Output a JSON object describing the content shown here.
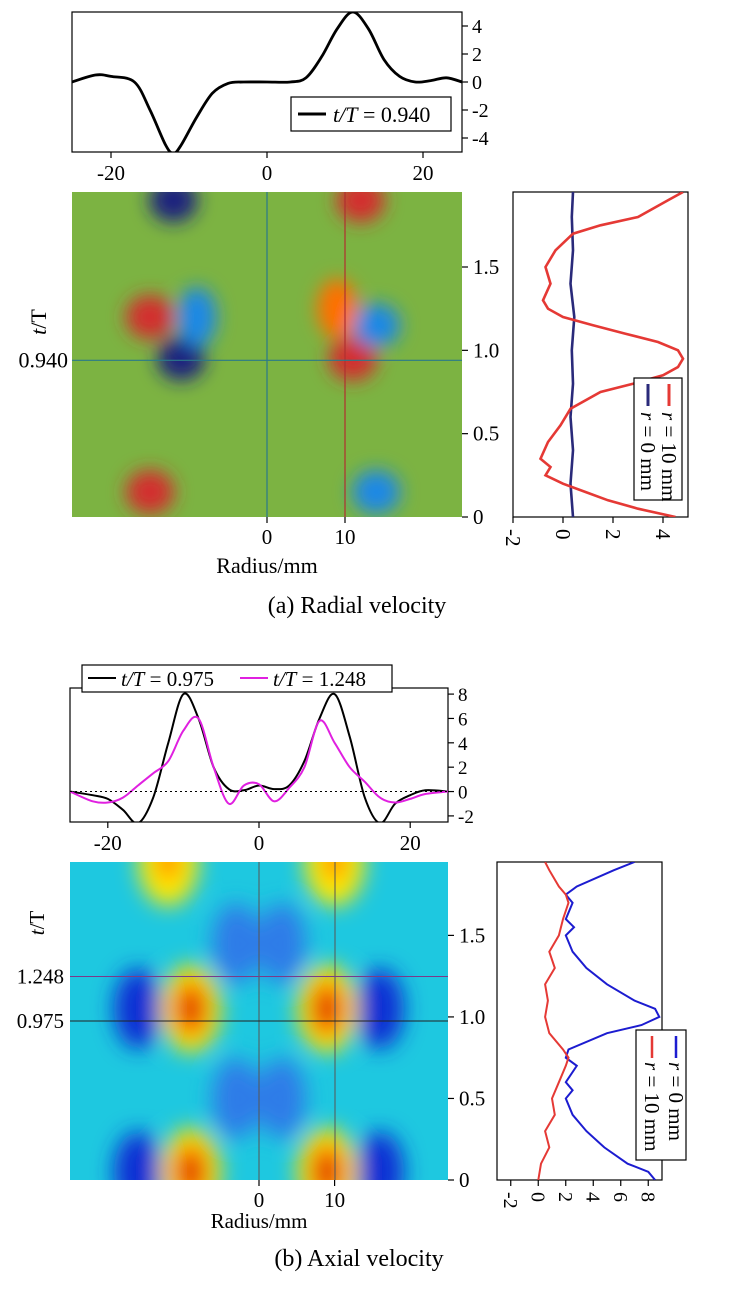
{
  "chart_data": [
    {
      "panel": "a",
      "caption": "(a) Radial velocity",
      "plots": [
        {
          "name": "profile",
          "type": "line",
          "xlim": [
            -25,
            25
          ],
          "ylim": [
            -5,
            5
          ],
          "xticks": [
            "-20",
            "0",
            "20"
          ],
          "yticks": [
            "4",
            "2",
            "0",
            "-2",
            "-4"
          ],
          "legend": [
            {
              "label_italic": "t/T",
              "label_rest": " = 0.940",
              "color": "#000000"
            }
          ],
          "series": [
            {
              "name": "t/T = 0.940",
              "color": "#000000",
              "x": [
                -25,
                -22,
                -20,
                -17,
                -15,
                -13,
                -12,
                -11,
                -9,
                -7,
                -5,
                -3,
                0,
                3,
                5,
                7,
                9,
                11,
                13,
                15,
                17,
                19,
                21,
                23,
                25
              ],
              "y": [
                0,
                0.5,
                0.4,
                0,
                -2,
                -4.5,
                -5.1,
                -4.5,
                -2.5,
                -0.8,
                -0.1,
                0,
                0,
                0,
                0.3,
                1.8,
                3.8,
                5,
                3.8,
                1.6,
                0.4,
                0,
                0.1,
                0.3,
                0
              ]
            }
          ]
        },
        {
          "name": "contour",
          "type": "heatmap",
          "xlabel": "Radius/mm",
          "ylabel_italic": "t",
          "ylabel_rest": "/T",
          "xlim": [
            -25,
            25
          ],
          "ylim": [
            0,
            1.95
          ],
          "xticks": [
            "0",
            "10"
          ],
          "yticks": [
            "0",
            "0.5",
            "1.0",
            "1.5"
          ],
          "marker_label": "0.940",
          "marker_value": 0.94,
          "background": "#7cb342",
          "blobs": [
            {
              "x": -11,
              "y": 0.95,
              "v": -4.5
            },
            {
              "x": -12,
              "y": 1.9,
              "v": -4.5
            },
            {
              "x": -15,
              "y": 1.2,
              "v": 4.0
            },
            {
              "x": -15,
              "y": 0.15,
              "v": 4.0
            },
            {
              "x": 11,
              "y": 0.95,
              "v": 4.5
            },
            {
              "x": 12,
              "y": 1.9,
              "v": 4.5
            },
            {
              "x": 14,
              "y": 1.15,
              "v": -3.0
            },
            {
              "x": 14,
              "y": 0.15,
              "v": -3.0
            },
            {
              "x": -9,
              "y": 1.2,
              "v": -1.5
            },
            {
              "x": 9,
              "y": 1.25,
              "v": 1.5
            }
          ]
        },
        {
          "name": "time-trace",
          "type": "line",
          "xlim": [
            -2,
            5
          ],
          "ylim": [
            0,
            1.95
          ],
          "xticks": [
            "-2",
            "0",
            "2",
            "4"
          ],
          "yticks": [
            "0",
            "0.5",
            "1.0",
            "1.5"
          ],
          "legend": [
            {
              "label_italic": "r",
              "label_rest": " = 0 mm",
              "color": "#2a2a7a"
            },
            {
              "label_italic": "r",
              "label_rest": " = 10 mm",
              "color": "#e53935"
            }
          ],
          "series": [
            {
              "name": "r = 0 mm",
              "color": "#2a2a7a",
              "t": [
                0,
                0.2,
                0.4,
                0.6,
                0.8,
                1.0,
                1.2,
                1.4,
                1.6,
                1.8,
                1.95
              ],
              "v": [
                0.4,
                0.3,
                0.4,
                0.3,
                0.4,
                0.35,
                0.45,
                0.3,
                0.4,
                0.35,
                0.4
              ]
            },
            {
              "name": "r = 10 mm",
              "color": "#e53935",
              "t": [
                0,
                0.05,
                0.1,
                0.15,
                0.2,
                0.25,
                0.3,
                0.35,
                0.45,
                0.55,
                0.65,
                0.75,
                0.8,
                0.85,
                0.9,
                0.95,
                1.0,
                1.05,
                1.1,
                1.15,
                1.2,
                1.25,
                1.3,
                1.4,
                1.5,
                1.6,
                1.7,
                1.75,
                1.8,
                1.9,
                1.95
              ],
              "v": [
                4.5,
                3.0,
                1.8,
                0.9,
                0.0,
                -0.7,
                -0.5,
                -0.9,
                -0.6,
                -0.1,
                0.3,
                1.5,
                2.8,
                4.0,
                4.6,
                4.8,
                4.6,
                3.8,
                2.5,
                1.2,
                0.0,
                -0.6,
                -0.8,
                -0.5,
                -0.7,
                -0.3,
                0.4,
                1.5,
                3.0,
                4.2,
                4.8
              ]
            }
          ]
        }
      ]
    },
    {
      "panel": "b",
      "caption": "(b) Axial velocity",
      "plots": [
        {
          "name": "profile",
          "type": "line",
          "xlim": [
            -25,
            25
          ],
          "ylim": [
            -2.5,
            8.5
          ],
          "xticks": [
            "-20",
            "0",
            "20"
          ],
          "yticks": [
            "8",
            "6",
            "4",
            "2",
            "0",
            "-2"
          ],
          "legend": [
            {
              "label_italic": "t/T",
              "label_rest": " = 0.975",
              "color": "#000000"
            },
            {
              "label_italic": "t/T",
              "label_rest": " = 1.248",
              "color": "#e020e0"
            }
          ],
          "series": [
            {
              "name": "t/T = 0.975",
              "color": "#000000",
              "x": [
                -25,
                -22,
                -20,
                -18,
                -16,
                -14,
                -12,
                -10,
                -8,
                -6,
                -4,
                -2,
                0,
                2,
                4,
                6,
                8,
                10,
                12,
                14,
                16,
                18,
                20,
                22,
                25
              ],
              "y": [
                0,
                -0.3,
                -0.6,
                -1.5,
                -2.6,
                -0.5,
                4.0,
                8.0,
                6.0,
                2.0,
                0.2,
                0.1,
                0.5,
                0.2,
                0.5,
                2.5,
                6.0,
                8.0,
                4.5,
                -0.5,
                -2.6,
                -1.0,
                -0.3,
                0.1,
                0
              ]
            },
            {
              "name": "t/T = 1.248",
              "color": "#e020e0",
              "x": [
                -25,
                -22,
                -20,
                -18,
                -16,
                -14,
                -12,
                -10,
                -8,
                -6,
                -4,
                -2,
                0,
                2,
                4,
                6,
                8,
                10,
                12,
                14,
                16,
                18,
                20,
                22,
                25
              ],
              "y": [
                0,
                -0.8,
                -0.9,
                -0.5,
                0.5,
                1.5,
                2.5,
                5.0,
                6.0,
                2.0,
                -1.0,
                0.5,
                0.6,
                -0.8,
                0.3,
                2.0,
                5.8,
                4.0,
                2.0,
                0.8,
                -0.5,
                -0.9,
                -0.6,
                -0.2,
                0
              ]
            },
            {
              "name": "zero",
              "color": "#000000",
              "dashed": true,
              "x": [
                -25,
                25
              ],
              "y": [
                0,
                0
              ]
            }
          ]
        },
        {
          "name": "contour",
          "type": "heatmap",
          "xlabel": "Radius/mm",
          "ylabel_italic": "t",
          "ylabel_rest": "/T",
          "xlim": [
            -25,
            25
          ],
          "ylim": [
            0,
            1.95
          ],
          "xticks": [
            "0",
            "10"
          ],
          "yticks": [
            "0",
            "0.5",
            "1.0",
            "1.5"
          ],
          "marker_labels": [
            "1.248",
            "0.975"
          ],
          "marker_values": [
            1.248,
            0.975
          ],
          "background": "#1ec8e0",
          "blobs": [
            {
              "x": -9,
              "y": 1.05,
              "v": 8
            },
            {
              "x": 9,
              "y": 1.05,
              "v": 8
            },
            {
              "x": -9,
              "y": 0.05,
              "v": 8
            },
            {
              "x": 9,
              "y": 0.05,
              "v": 8
            },
            {
              "x": -12,
              "y": 1.95,
              "v": 6
            },
            {
              "x": 10,
              "y": 1.95,
              "v": 6
            },
            {
              "x": -16,
              "y": 1.05,
              "v": -2
            },
            {
              "x": 16,
              "y": 1.05,
              "v": -2
            },
            {
              "x": -16,
              "y": 0.05,
              "v": -2
            },
            {
              "x": 16,
              "y": 0.05,
              "v": -2
            },
            {
              "x": -3,
              "y": 1.45,
              "v": -1.2
            },
            {
              "x": 3,
              "y": 1.45,
              "v": -1.2
            },
            {
              "x": -3,
              "y": 0.5,
              "v": -1.2
            },
            {
              "x": 3,
              "y": 0.5,
              "v": -1.2
            }
          ]
        },
        {
          "name": "time-trace",
          "type": "line",
          "xlim": [
            -3,
            9
          ],
          "ylim": [
            0,
            1.95
          ],
          "xticks": [
            "-2",
            "0",
            "2",
            "4",
            "6",
            "8"
          ],
          "yticks": [
            "0",
            "0.5",
            "1.0",
            "1.5"
          ],
          "legend": [
            {
              "label_italic": "r",
              "label_rest": " = 0 mm",
              "color": "#1c1cd0"
            },
            {
              "label_italic": "r",
              "label_rest": " = 10 mm",
              "color": "#e53935"
            }
          ],
          "series": [
            {
              "name": "r = 0 mm",
              "color": "#1c1cd0",
              "t": [
                0,
                0.05,
                0.1,
                0.2,
                0.3,
                0.4,
                0.5,
                0.55,
                0.6,
                0.7,
                0.75,
                0.8,
                0.9,
                0.95,
                1.0,
                1.05,
                1.1,
                1.2,
                1.3,
                1.4,
                1.5,
                1.55,
                1.6,
                1.7,
                1.75,
                1.8,
                1.9,
                1.95
              ],
              "v": [
                8.5,
                8.0,
                6.5,
                4.8,
                3.5,
                2.5,
                2.0,
                2.5,
                2.0,
                2.8,
                2.0,
                2.2,
                5.0,
                7.5,
                8.8,
                8.5,
                7.0,
                5.0,
                3.5,
                2.5,
                2.0,
                2.6,
                2.0,
                2.5,
                2.0,
                2.8,
                5.5,
                7.0
              ]
            },
            {
              "name": "r = 10 mm",
              "color": "#e53935",
              "t": [
                0,
                0.1,
                0.2,
                0.3,
                0.4,
                0.5,
                0.6,
                0.7,
                0.75,
                0.8,
                0.9,
                1.0,
                1.1,
                1.2,
                1.3,
                1.4,
                1.5,
                1.6,
                1.7,
                1.75,
                1.8,
                1.9,
                1.95
              ],
              "v": [
                0.0,
                0.2,
                0.8,
                0.5,
                1.2,
                1.0,
                1.5,
                2.0,
                2.2,
                1.8,
                0.8,
                0.5,
                0.7,
                0.5,
                1.2,
                0.8,
                1.5,
                1.8,
                2.2,
                2.0,
                1.5,
                0.8,
                0.5
              ]
            }
          ]
        }
      ]
    }
  ]
}
